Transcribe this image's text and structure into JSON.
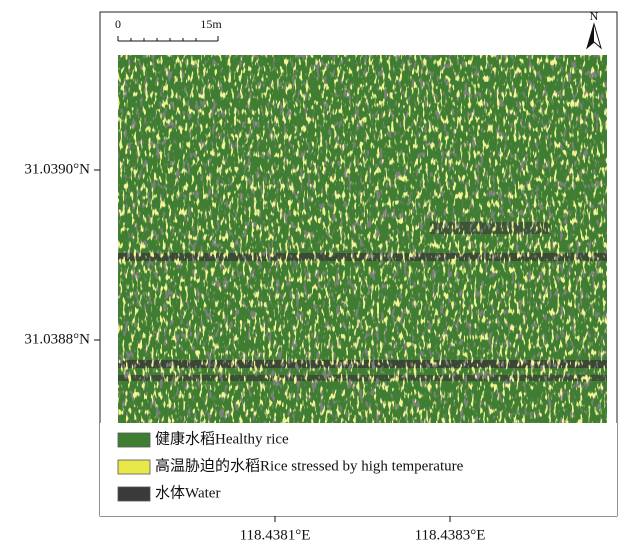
{
  "scale_bar": {
    "start": "0",
    "end": "15m"
  },
  "north": "N",
  "latitude_labels": [
    "31.0390°N",
    "31.0388°N"
  ],
  "longitude_labels": [
    "118.4381°E",
    "118.4383°E"
  ],
  "legend": [
    {
      "label": "健康水稻Healthy rice",
      "color": "#3f7d33"
    },
    {
      "label": "高温胁迫的水稻Rice stressed by high temperature",
      "color": "#e8e84a"
    },
    {
      "label": "水体Water",
      "color": "#3a3a38"
    }
  ]
}
